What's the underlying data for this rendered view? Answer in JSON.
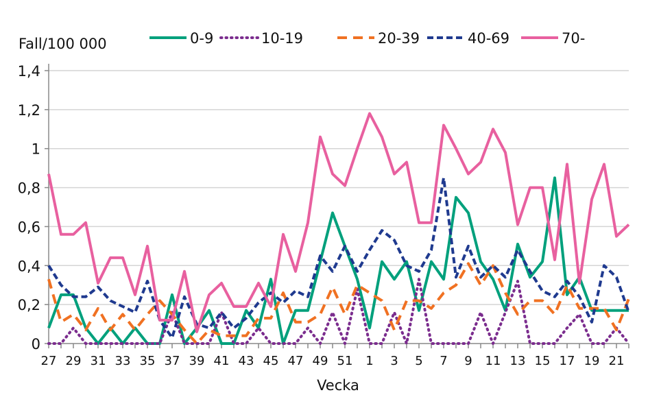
{
  "chart_data": {
    "type": "line",
    "title": "",
    "ylabel": "Fall/100 000",
    "xlabel": "Vecka",
    "ylim": [
      0,
      1.4
    ],
    "yticks": [
      "0",
      "0,2",
      "0,4",
      "0,6",
      "0,8",
      "1",
      "1,2",
      "1,4"
    ],
    "grid": true,
    "legend_position": "top",
    "x": [
      27,
      28,
      29,
      30,
      31,
      32,
      33,
      34,
      35,
      36,
      37,
      38,
      39,
      40,
      41,
      42,
      43,
      44,
      45,
      46,
      47,
      48,
      49,
      50,
      51,
      52,
      1,
      2,
      3,
      4,
      5,
      6,
      7,
      8,
      9,
      10,
      11,
      12,
      13,
      14,
      15,
      16,
      17,
      18,
      19,
      20,
      21,
      22
    ],
    "xticks": [
      "27",
      "29",
      "31",
      "33",
      "35",
      "37",
      "39",
      "41",
      "43",
      "45",
      "47",
      "49",
      "51",
      "1",
      "3",
      "5",
      "7",
      "9",
      "11",
      "13",
      "15",
      "17",
      "19",
      "21"
    ],
    "series": [
      {
        "name": "0-9",
        "color": "#00a07c",
        "style": "solid",
        "values": [
          0.08,
          0.25,
          0.25,
          0.08,
          0,
          0.08,
          0,
          0.08,
          0,
          0,
          0.25,
          0,
          0.08,
          0.17,
          0,
          0,
          0.17,
          0.08,
          0.33,
          0,
          0.17,
          0.17,
          0.42,
          0.67,
          0.5,
          0.33,
          0.08,
          0.42,
          0.33,
          0.42,
          0.17,
          0.42,
          0.33,
          0.75,
          0.67,
          0.42,
          0.33,
          0.17,
          0.51,
          0.34,
          0.42,
          0.85,
          0.25,
          0.34,
          0.17,
          0.17,
          0.17,
          0.17
        ]
      },
      {
        "name": "10-19",
        "color": "#7b2d8e",
        "style": "dotted",
        "values": [
          0,
          0,
          0.08,
          0,
          0,
          0,
          0,
          0,
          0,
          0,
          0.16,
          0,
          0,
          0,
          0.16,
          0,
          0,
          0.08,
          0,
          0,
          0,
          0.08,
          0,
          0.16,
          0,
          0.28,
          0,
          0,
          0.16,
          0,
          0.33,
          0,
          0,
          0,
          0,
          0.16,
          0,
          0.16,
          0.32,
          0,
          0,
          0,
          0.08,
          0.15,
          0,
          0,
          0.08,
          0
        ]
      },
      {
        "name": "20-39",
        "color": "#f07122",
        "style": "dashed",
        "values": [
          0.33,
          0.11,
          0.15,
          0.07,
          0.18,
          0.07,
          0.15,
          0.07,
          0.15,
          0.22,
          0.15,
          0.07,
          0,
          0.07,
          0.04,
          0.04,
          0.04,
          0.13,
          0.13,
          0.26,
          0.11,
          0.11,
          0.15,
          0.29,
          0.15,
          0.3,
          0.26,
          0.22,
          0.07,
          0.22,
          0.22,
          0.18,
          0.26,
          0.3,
          0.41,
          0.3,
          0.4,
          0.26,
          0.15,
          0.22,
          0.22,
          0.15,
          0.3,
          0.18,
          0.18,
          0.18,
          0.07,
          0.23
        ]
      },
      {
        "name": "40-69",
        "color": "#1f3a8f",
        "style": "short-dashed",
        "values": [
          0.4,
          0.3,
          0.24,
          0.24,
          0.29,
          0.22,
          0.19,
          0.16,
          0.32,
          0.12,
          0.03,
          0.24,
          0.1,
          0.08,
          0.16,
          0.08,
          0.13,
          0.21,
          0.26,
          0.21,
          0.27,
          0.24,
          0.45,
          0.37,
          0.5,
          0.37,
          0.48,
          0.58,
          0.53,
          0.4,
          0.37,
          0.48,
          0.85,
          0.34,
          0.5,
          0.34,
          0.4,
          0.34,
          0.48,
          0.37,
          0.27,
          0.24,
          0.32,
          0.24,
          0.11,
          0.4,
          0.34,
          0.16
        ]
      },
      {
        "name": "70-",
        "color": "#e8609f",
        "style": "solid",
        "values": [
          0.87,
          0.56,
          0.56,
          0.62,
          0.31,
          0.44,
          0.44,
          0.25,
          0.5,
          0.12,
          0.12,
          0.37,
          0.06,
          0.25,
          0.31,
          0.19,
          0.19,
          0.31,
          0.19,
          0.56,
          0.37,
          0.62,
          1.06,
          0.87,
          0.81,
          1.0,
          1.18,
          1.06,
          0.87,
          0.93,
          0.62,
          0.62,
          1.12,
          1.0,
          0.87,
          0.93,
          1.1,
          0.98,
          0.61,
          0.8,
          0.8,
          0.43,
          0.92,
          0.31,
          0.74,
          0.92,
          0.55,
          0.61
        ]
      }
    ]
  }
}
